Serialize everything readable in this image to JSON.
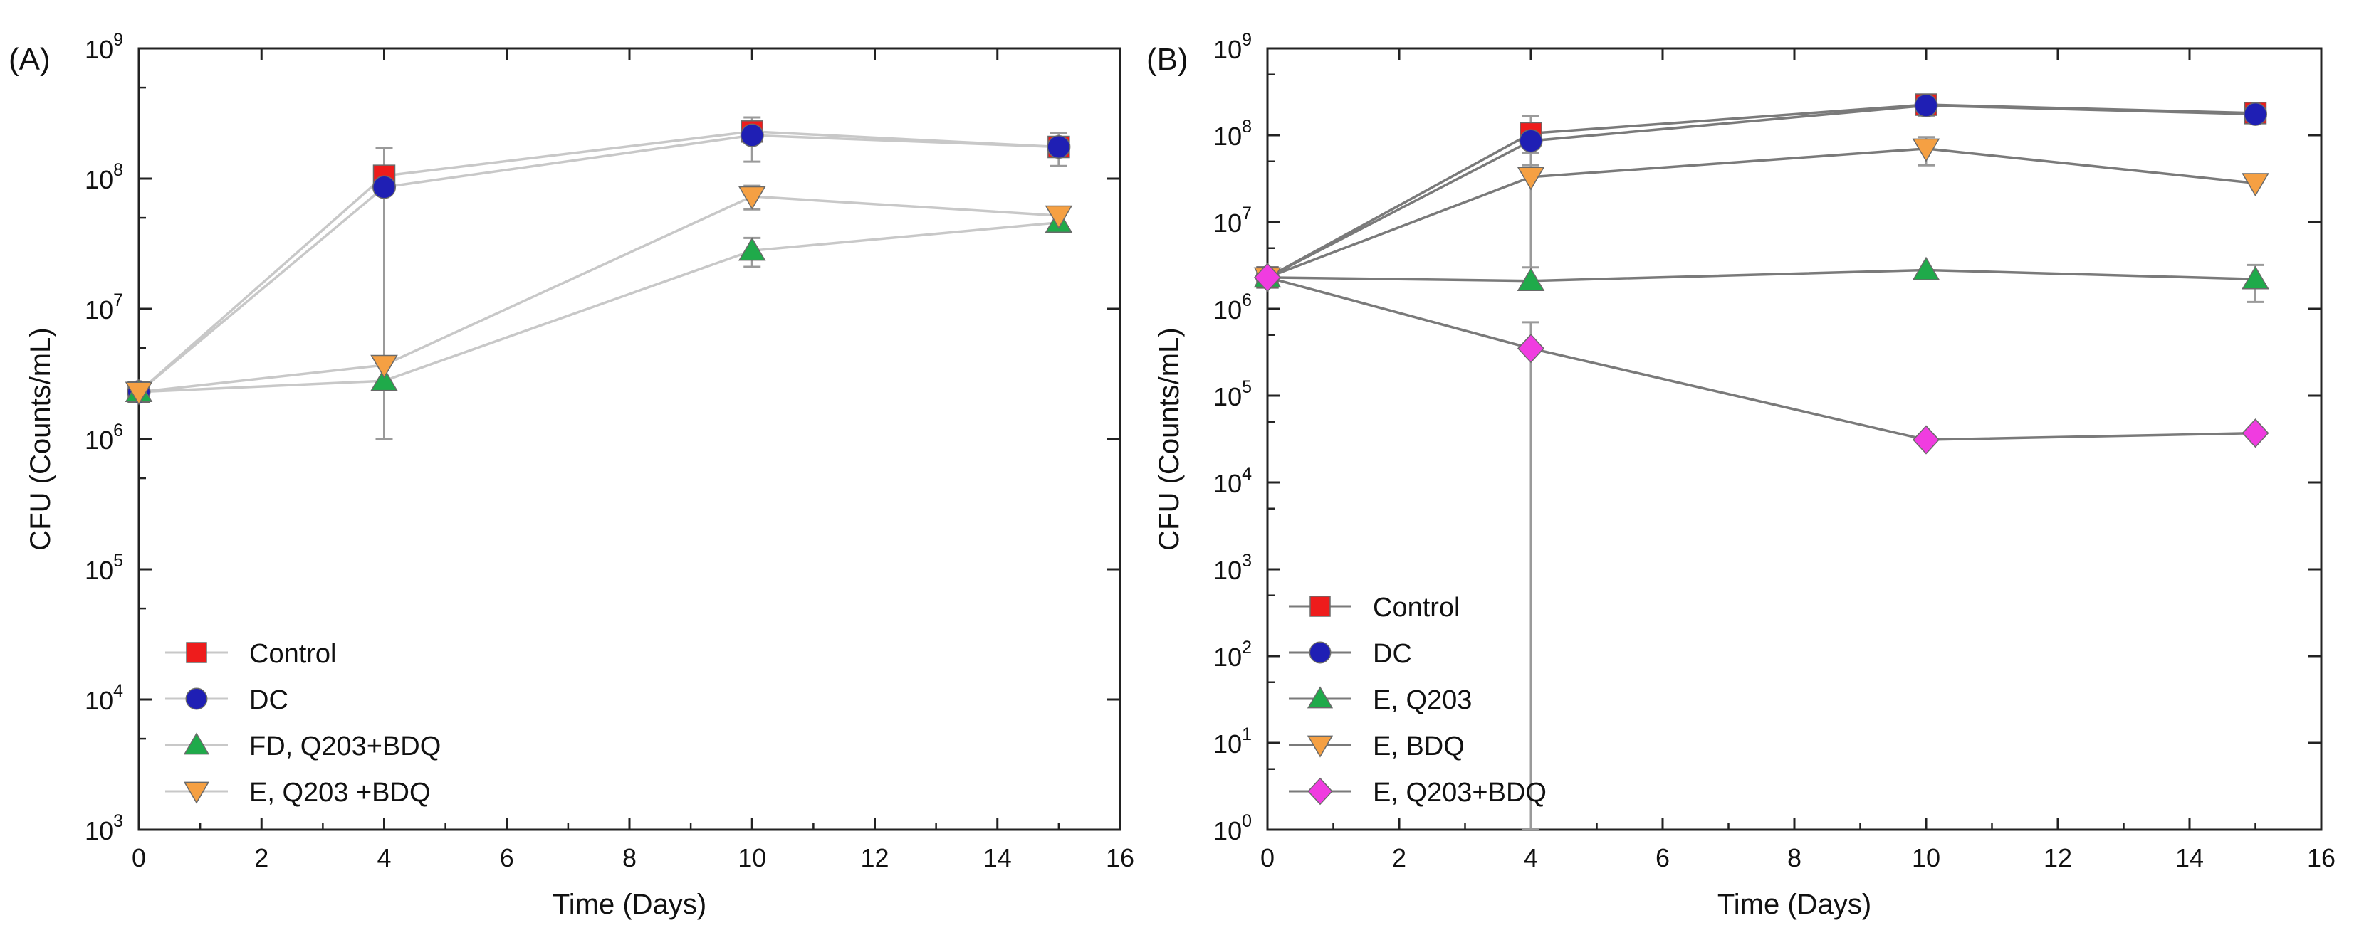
{
  "chart_data": [
    {
      "panel_label": "(A)",
      "type": "line",
      "scale_y": "log",
      "xlabel": "Time (Days)",
      "ylabel": "CFU (Counts/mL)",
      "xlim": [
        0,
        16
      ],
      "x_ticks": [
        "0",
        "2",
        "4",
        "6",
        "8",
        "10",
        "12",
        "14",
        "16"
      ],
      "ylim_exp": [
        3,
        9
      ],
      "y_ticks": [
        {
          "base": "10",
          "exp": "3"
        },
        {
          "base": "10",
          "exp": "4"
        },
        {
          "base": "10",
          "exp": "5"
        },
        {
          "base": "10",
          "exp": "6"
        },
        {
          "base": "10",
          "exp": "7"
        },
        {
          "base": "10",
          "exp": "8"
        },
        {
          "base": "10",
          "exp": "9"
        }
      ],
      "legend_position": "bottom-left",
      "line_color": "#c8c8c8",
      "series": [
        {
          "name": "Control",
          "marker": "square",
          "color": "#ee1c1c",
          "x": [
            0,
            4,
            10,
            15
          ],
          "y": [
            2300000.0,
            105000000.0,
            230000000.0,
            175000000.0
          ],
          "err": [
            0,
            0,
            0,
            0
          ]
        },
        {
          "name": "DC",
          "marker": "circle",
          "color": "#1f1fb4",
          "x": [
            0,
            4,
            10,
            15
          ],
          "y": [
            2300000.0,
            86000000.0,
            215000000.0,
            175000000.0
          ],
          "err": [
            0,
            85000000.0,
            80000000.0,
            50000000.0
          ]
        },
        {
          "name": "FD, Q203+BDQ",
          "marker": "triangle-up",
          "color": "#1faa4a",
          "x": [
            0,
            4,
            10,
            15
          ],
          "y": [
            2300000.0,
            2800000.0,
            28000000.0,
            46000000.0
          ],
          "err": [
            0,
            0,
            7000000.0,
            0
          ]
        },
        {
          "name": "E, Q203 +BDQ",
          "marker": "triangle-down",
          "color": "#f5a043",
          "x": [
            0,
            4,
            10,
            15
          ],
          "y": [
            2300000.0,
            3700000.0,
            73000000.0,
            52000000.0
          ],
          "err": [
            0,
            0,
            15000000.0,
            0
          ]
        }
      ]
    },
    {
      "panel_label": "(B)",
      "type": "line",
      "scale_y": "log",
      "xlabel": "Time (Days)",
      "ylabel": "CFU (Counts/mL)",
      "xlim": [
        0,
        16
      ],
      "x_ticks": [
        "0",
        "2",
        "4",
        "6",
        "8",
        "10",
        "12",
        "14",
        "16"
      ],
      "ylim_exp": [
        0,
        9
      ],
      "y_ticks": [
        {
          "base": "10",
          "exp": "0"
        },
        {
          "base": "10",
          "exp": "1"
        },
        {
          "base": "10",
          "exp": "2"
        },
        {
          "base": "10",
          "exp": "3"
        },
        {
          "base": "10",
          "exp": "4"
        },
        {
          "base": "10",
          "exp": "5"
        },
        {
          "base": "10",
          "exp": "6"
        },
        {
          "base": "10",
          "exp": "7"
        },
        {
          "base": "10",
          "exp": "8"
        },
        {
          "base": "10",
          "exp": "9"
        }
      ],
      "legend_position": "bottom-left",
      "line_color": "#7a7a7a",
      "series": [
        {
          "name": "Control",
          "marker": "square",
          "color": "#ee1c1c",
          "x": [
            0,
            4,
            10,
            15
          ],
          "y": [
            2300000.0,
            105000000.0,
            225000000.0,
            180000000.0
          ],
          "err": [
            0,
            60000000.0,
            60000000.0,
            40000000.0
          ]
        },
        {
          "name": "DC",
          "marker": "circle",
          "color": "#1f1fb4",
          "x": [
            0,
            4,
            10,
            15
          ],
          "y": [
            2300000.0,
            86000000.0,
            220000000.0,
            175000000.0
          ],
          "err": [
            0,
            0,
            0,
            0
          ]
        },
        {
          "name": "E, Q203",
          "marker": "triangle-up",
          "color": "#1faa4a",
          "x": [
            0,
            4,
            10,
            15
          ],
          "y": [
            2300000.0,
            2100000.0,
            2800000.0,
            2200000.0
          ],
          "err": [
            0,
            0,
            0,
            1000000.0
          ]
        },
        {
          "name": "E, BDQ",
          "marker": "triangle-down",
          "color": "#f5a043",
          "x": [
            0,
            4,
            10,
            15
          ],
          "y": [
            2300000.0,
            33000000.0,
            70000000.0,
            28000000.0
          ],
          "err": [
            0,
            30000000.0,
            25000000.0,
            0
          ]
        },
        {
          "name": "E, Q203+BDQ",
          "marker": "diamond",
          "color": "#f03ce0",
          "x": [
            0,
            4,
            10,
            15
          ],
          "y": [
            2300000.0,
            350000.0,
            31000.0,
            37000.0
          ],
          "err": [
            0,
            350000.0,
            0,
            0
          ]
        }
      ]
    }
  ]
}
